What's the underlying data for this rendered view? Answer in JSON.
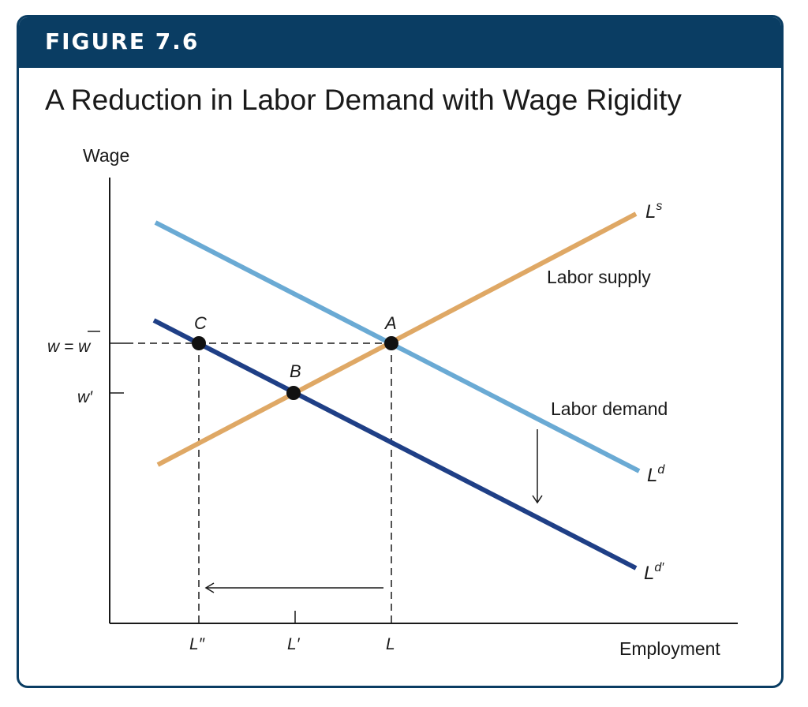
{
  "figure": {
    "label": "FIGURE 7.6",
    "title": "A Reduction in Labor Demand with Wage Rigidity"
  },
  "axes": {
    "y_label": "Wage",
    "x_label": "Employment",
    "y_ticks": {
      "w_bar": "w = w",
      "w_prime": "w′"
    },
    "x_ticks": {
      "L_double": "L″",
      "L_prime": "L′",
      "L": "L"
    }
  },
  "curves": {
    "supply": {
      "symbol": "L",
      "sup": "s",
      "description": "Labor supply",
      "color": "#dfa865"
    },
    "demand": {
      "symbol": "L",
      "sup": "d",
      "description": "Labor demand",
      "color": "#6aaad4"
    },
    "demand_new": {
      "symbol": "L",
      "sup": "d′",
      "color": "#1f3f86"
    }
  },
  "points": {
    "A": "A",
    "B": "B",
    "C": "C"
  },
  "colors": {
    "header": "#0a3d63",
    "axis": "#1a1a1a"
  }
}
